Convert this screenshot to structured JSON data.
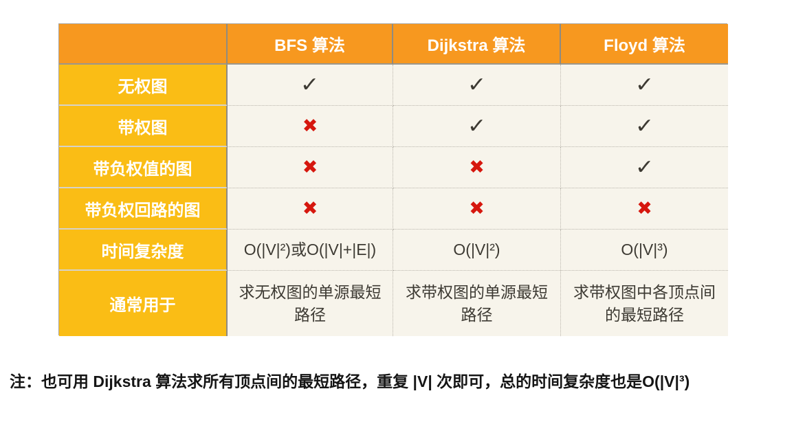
{
  "table": {
    "columns": [
      "",
      "BFS 算法",
      "Dijkstra 算法",
      "Floyd 算法"
    ],
    "rows": [
      {
        "label": "无权图",
        "cells": [
          {
            "type": "check"
          },
          {
            "type": "check"
          },
          {
            "type": "check"
          }
        ]
      },
      {
        "label": "带权图",
        "cells": [
          {
            "type": "cross"
          },
          {
            "type": "check"
          },
          {
            "type": "check"
          }
        ]
      },
      {
        "label": "带负权值的图",
        "cells": [
          {
            "type": "cross"
          },
          {
            "type": "cross"
          },
          {
            "type": "check"
          }
        ]
      },
      {
        "label": "带负权回路的图",
        "cells": [
          {
            "type": "cross"
          },
          {
            "type": "cross"
          },
          {
            "type": "cross"
          }
        ]
      },
      {
        "label": "时间复杂度",
        "cells": [
          {
            "type": "text",
            "value": "O(|V|²)或O(|V|+|E|)"
          },
          {
            "type": "text",
            "value": "O(|V|²)"
          },
          {
            "type": "text",
            "value": "O(|V|³)"
          }
        ]
      },
      {
        "label": "通常用于",
        "cells": [
          {
            "type": "text",
            "value": "求无权图的单源最短路径"
          },
          {
            "type": "text",
            "value": "求带权图的单源最短路径"
          },
          {
            "type": "text",
            "value": "求带权图中各顶点间的最短路径"
          }
        ]
      }
    ],
    "glyphs": {
      "check": "✓",
      "cross": "✖"
    },
    "colors": {
      "header_bg": "#f7981f",
      "label_bg": "#fabd15",
      "cell_bg": "#f7f4eb",
      "header_text": "#ffffff",
      "body_text": "#3d3a33",
      "check": "#3d3a33",
      "cross": "#d6170e"
    }
  },
  "note": {
    "text": "注：也可用 Dijkstra 算法求所有顶点间的最短路径，重复 |V| 次即可，总的时间复杂度也是O(|V|³)"
  }
}
